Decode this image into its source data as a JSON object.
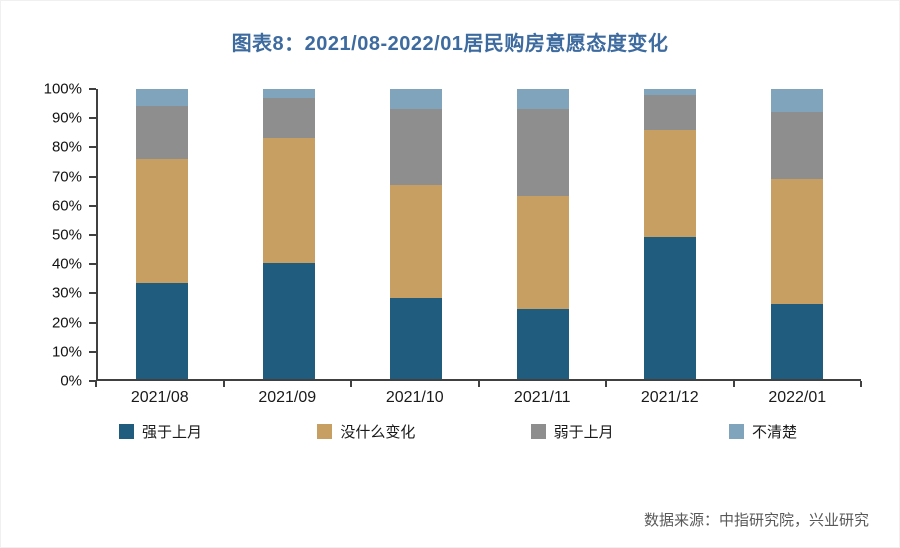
{
  "title": "图表8：2021/08-2022/01居民购房意愿态度变化",
  "title_color": "#3E6B9F",
  "source": "数据来源：中指研究院，兴业研究",
  "chart_data": {
    "type": "bar",
    "stacked": true,
    "percent": true,
    "title": "图表8：2021/08-2022/01居民购房意愿态度变化",
    "categories": [
      "2021/08",
      "2021/09",
      "2021/10",
      "2021/11",
      "2021/12",
      "2022/01"
    ],
    "series": [
      {
        "name": "强于上月",
        "color": "#1F5C7E",
        "values": [
          33,
          40,
          28,
          24,
          49,
          26
        ]
      },
      {
        "name": "没什么变化",
        "color": "#C79F62",
        "values": [
          43,
          43,
          39,
          39,
          37,
          43
        ]
      },
      {
        "name": "弱于上月",
        "color": "#8E8E8E",
        "values": [
          18,
          14,
          26,
          30,
          12,
          23
        ]
      },
      {
        "name": "不清楚",
        "color": "#7FA4BC",
        "values": [
          6,
          3,
          7,
          7,
          2,
          8
        ]
      }
    ],
    "xlabel": "",
    "ylabel": "",
    "ylim": [
      0,
      100
    ],
    "ytick_labels": [
      "0%",
      "10%",
      "20%",
      "30%",
      "40%",
      "50%",
      "60%",
      "70%",
      "80%",
      "90%",
      "100%"
    ],
    "grid": false,
    "legend_position": "bottom"
  }
}
